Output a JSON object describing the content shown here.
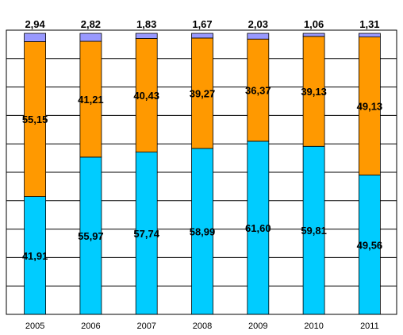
{
  "chart_data": {
    "type": "bar",
    "stacked": true,
    "percent_stacked": true,
    "categories": [
      "2005",
      "2006",
      "2007",
      "2008",
      "2009",
      "2010",
      "2011"
    ],
    "series": [
      {
        "values": [
          41.91,
          55.97,
          57.74,
          58.99,
          61.6,
          59.81,
          49.56
        ],
        "labels": [
          "41,91",
          "55,97",
          "57,74",
          "58,99",
          "61,60",
          "59,81",
          "49,56"
        ],
        "color": "#00ccff"
      },
      {
        "values": [
          55.15,
          41.21,
          40.43,
          39.27,
          36.37,
          39.13,
          49.13
        ],
        "labels": [
          "55,15",
          "41,21",
          "40,43",
          "39,27",
          "36,37",
          "39,13",
          "49,13"
        ],
        "color": "#ff9900"
      },
      {
        "values": [
          2.94,
          2.82,
          1.83,
          1.67,
          2.03,
          1.06,
          1.31
        ],
        "labels": [
          "2,94",
          "2,82",
          "1,83",
          "1,67",
          "2,03",
          "1,06",
          "1,31"
        ],
        "color": "#9999ff"
      }
    ],
    "ylim": [
      0,
      100
    ],
    "grid": true,
    "legend": "none"
  }
}
